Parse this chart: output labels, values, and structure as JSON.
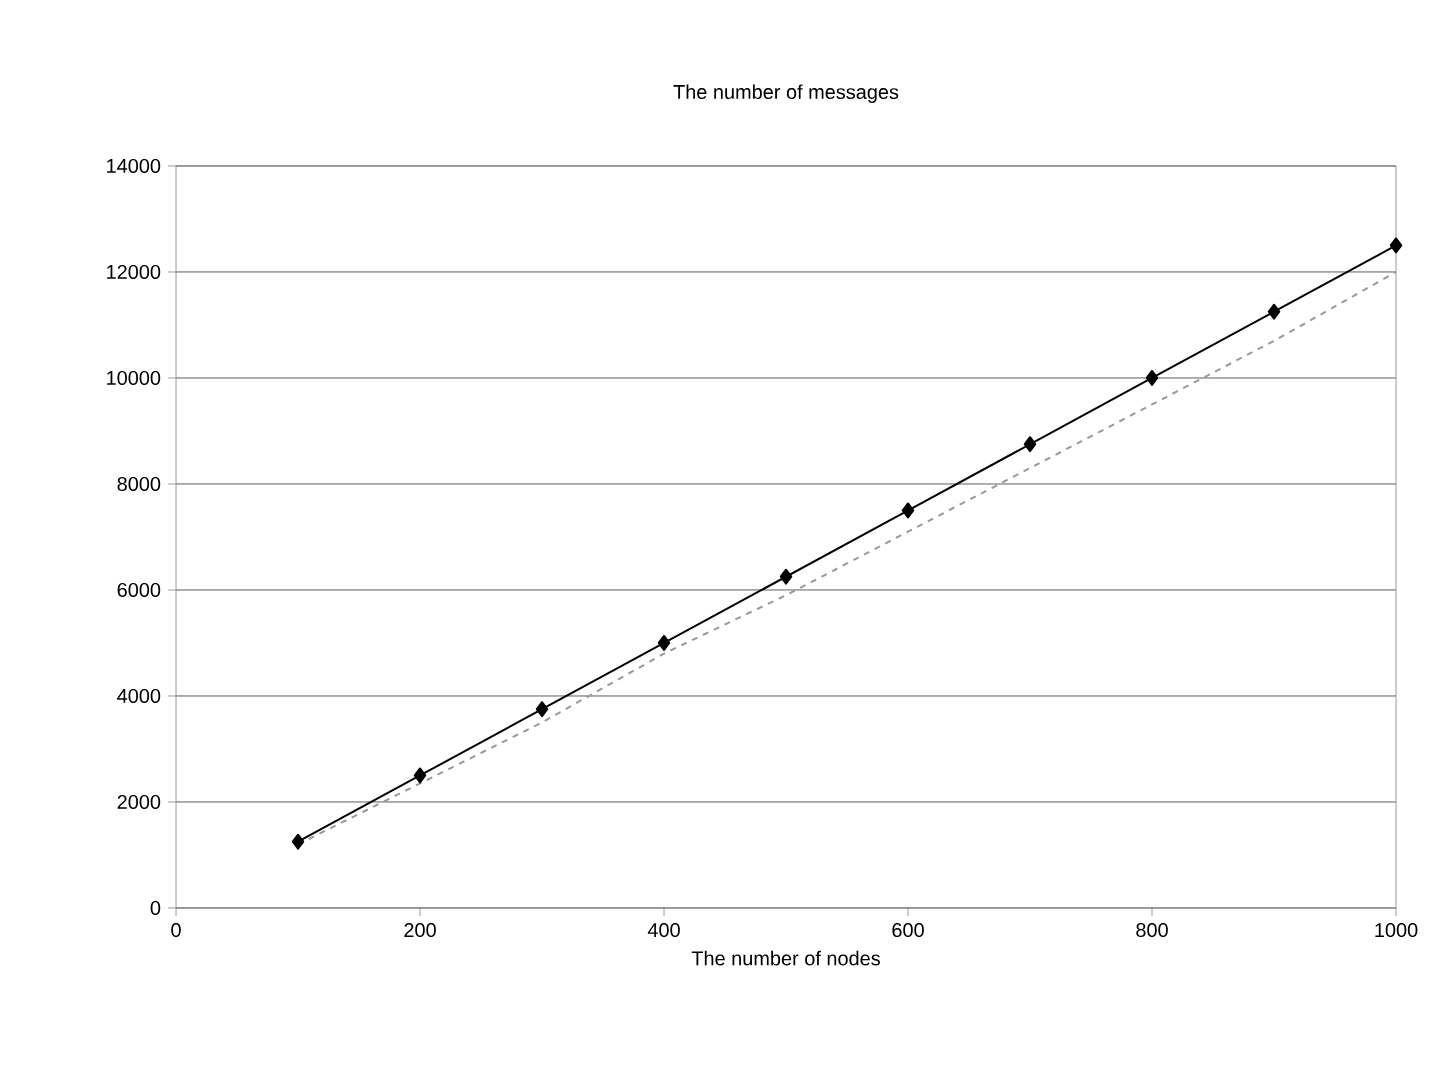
{
  "chart_data": {
    "type": "line",
    "title": "The number of messages",
    "xlabel": "The number of nodes",
    "x": [
      100,
      200,
      300,
      400,
      500,
      600,
      700,
      800,
      900,
      1000
    ],
    "series": [
      {
        "color": "#000000",
        "marker": "diamond",
        "line_style": "solid",
        "values": [
          1250,
          2500,
          3750,
          5000,
          6250,
          7500,
          8750,
          10000,
          11250,
          12500
        ]
      },
      {
        "color": "#999999",
        "marker": "none",
        "line_style": "dashed",
        "values": [
          1200,
          2350,
          3500,
          4800,
          5900,
          7100,
          8300,
          9500,
          10700,
          12000
        ]
      }
    ],
    "xlim": [
      0,
      1000
    ],
    "ylim": [
      0,
      14000
    ],
    "xticks": [
      0,
      200,
      400,
      600,
      800,
      1000
    ],
    "yticks": [
      0,
      2000,
      4000,
      6000,
      8000,
      10000,
      12000,
      14000
    ],
    "grid": "y"
  }
}
